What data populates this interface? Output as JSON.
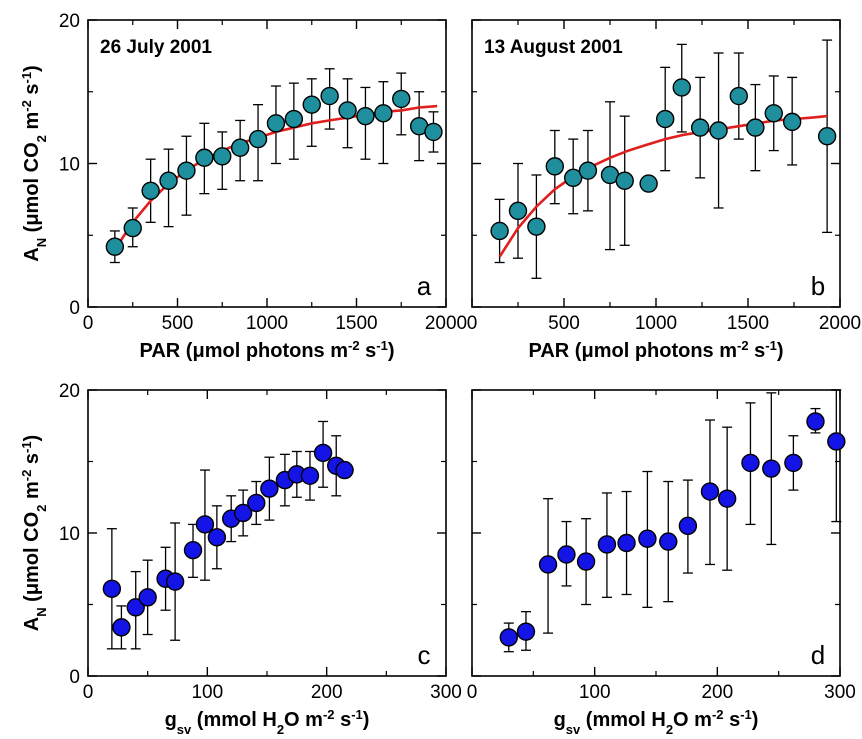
{
  "figure": {
    "colors": {
      "marker_teal": "#1f8f9e",
      "marker_blue": "#1414e6",
      "fit_red": "#e01f1f",
      "axis": "#000000"
    }
  },
  "chart_data": [
    {
      "panel": "a",
      "type": "scatter",
      "annotation": "26 July 2001",
      "panel_letter": "a",
      "xlabel": {
        "main": "PAR (",
        "mu": "μ",
        "rest": "mol photons m",
        "sup1": "-2",
        "mid": " s",
        "sup2": "-1",
        "end": ")"
      },
      "ylabel": {
        "main": "A",
        "sub": "N",
        "rest": " (μmol CO",
        "sub2": "2",
        "mid": " m",
        "sup1": "-2",
        "mid2": " s",
        "sup2": "-1",
        "end": ")"
      },
      "xlim": [
        0,
        2000
      ],
      "ylim": [
        0,
        20
      ],
      "xticks": [
        0,
        500,
        1000,
        1500,
        2000
      ],
      "yticks": [
        0,
        10,
        20
      ],
      "marker_color": "teal",
      "fit_curve": {
        "color": "red",
        "x": [
          150,
          250,
          350,
          450,
          550,
          650,
          750,
          850,
          950,
          1050,
          1150,
          1250,
          1350,
          1450,
          1550,
          1650,
          1750,
          1850,
          1950
        ],
        "y": [
          4.0,
          5.9,
          7.4,
          8.6,
          9.5,
          10.3,
          10.9,
          11.4,
          11.8,
          12.2,
          12.5,
          12.8,
          13.0,
          13.2,
          13.4,
          13.6,
          13.7,
          13.9,
          14.0
        ]
      },
      "points": [
        {
          "x": 150,
          "y": 4.2,
          "err_lo": 3.1,
          "err_hi": 5.3
        },
        {
          "x": 250,
          "y": 5.5,
          "err_lo": 4.2,
          "err_hi": 6.9
        },
        {
          "x": 350,
          "y": 8.1,
          "err_lo": 5.9,
          "err_hi": 10.3
        },
        {
          "x": 450,
          "y": 8.8,
          "err_lo": 5.6,
          "err_hi": 11.0
        },
        {
          "x": 550,
          "y": 9.5,
          "err_lo": 6.4,
          "err_hi": 11.9
        },
        {
          "x": 650,
          "y": 10.4,
          "err_lo": 7.9,
          "err_hi": 12.8
        },
        {
          "x": 750,
          "y": 10.5,
          "err_lo": 8.2,
          "err_hi": 12.2
        },
        {
          "x": 850,
          "y": 11.1,
          "err_lo": 8.8,
          "err_hi": 13.0
        },
        {
          "x": 950,
          "y": 11.7,
          "err_lo": 8.8,
          "err_hi": 14.1
        },
        {
          "x": 1050,
          "y": 12.8,
          "err_lo": 10.0,
          "err_hi": 15.4
        },
        {
          "x": 1150,
          "y": 13.1,
          "err_lo": 10.3,
          "err_hi": 15.6
        },
        {
          "x": 1250,
          "y": 14.1,
          "err_lo": 11.2,
          "err_hi": 15.9
        },
        {
          "x": 1350,
          "y": 14.7,
          "err_lo": 12.4,
          "err_hi": 16.6
        },
        {
          "x": 1450,
          "y": 13.7,
          "err_lo": 11.1,
          "err_hi": 15.9
        },
        {
          "x": 1550,
          "y": 13.3,
          "err_lo": 10.3,
          "err_hi": 15.3
        },
        {
          "x": 1650,
          "y": 13.5,
          "err_lo": 10.0,
          "err_hi": 15.7
        },
        {
          "x": 1750,
          "y": 14.5,
          "err_lo": 12.0,
          "err_hi": 16.3
        },
        {
          "x": 1850,
          "y": 12.6,
          "err_lo": 10.2,
          "err_hi": 15.0
        },
        {
          "x": 1930,
          "y": 12.2,
          "err_lo": 10.8,
          "err_hi": 13.6
        }
      ]
    },
    {
      "panel": "b",
      "type": "scatter",
      "annotation": "13 August 2001",
      "panel_letter": "b",
      "xlabel": {
        "main": "PAR (",
        "mu": "μ",
        "rest": "mol photons m",
        "sup1": "-2",
        "mid": " s",
        "sup2": "-1",
        "end": ")"
      },
      "xlim": [
        0,
        2000
      ],
      "ylim": [
        0,
        20
      ],
      "xticks": [
        0,
        500,
        1000,
        1500,
        2000
      ],
      "yticks": [
        0,
        10,
        20
      ],
      "marker_color": "teal",
      "fit_curve": {
        "color": "red",
        "x": [
          150,
          250,
          350,
          450,
          550,
          650,
          750,
          850,
          950,
          1050,
          1150,
          1250,
          1350,
          1450,
          1550,
          1650,
          1750,
          1850,
          1930
        ],
        "y": [
          3.5,
          5.5,
          7.0,
          8.2,
          9.1,
          9.8,
          10.4,
          10.9,
          11.3,
          11.7,
          12.0,
          12.2,
          12.4,
          12.6,
          12.8,
          13.0,
          13.1,
          13.2,
          13.3
        ]
      },
      "points": [
        {
          "x": 150,
          "y": 5.3,
          "err_lo": 3.1,
          "err_hi": 7.5
        },
        {
          "x": 250,
          "y": 6.7,
          "err_lo": 3.4,
          "err_hi": 10.0
        },
        {
          "x": 350,
          "y": 5.6,
          "err_lo": 2.0,
          "err_hi": 9.2
        },
        {
          "x": 450,
          "y": 9.8,
          "err_lo": 7.2,
          "err_hi": 12.3
        },
        {
          "x": 550,
          "y": 9.0,
          "err_lo": 6.5,
          "err_hi": 11.7
        },
        {
          "x": 630,
          "y": 9.5,
          "err_lo": 6.7,
          "err_hi": 12.3
        },
        {
          "x": 750,
          "y": 9.2,
          "err_lo": 4.0,
          "err_hi": 14.3
        },
        {
          "x": 830,
          "y": 8.8,
          "err_lo": 4.3,
          "err_hi": 13.3
        },
        {
          "x": 960,
          "y": 8.6,
          "err_lo": 8.6,
          "err_hi": 8.6
        },
        {
          "x": 1050,
          "y": 13.1,
          "err_lo": 9.5,
          "err_hi": 16.7
        },
        {
          "x": 1140,
          "y": 15.3,
          "err_lo": 12.2,
          "err_hi": 18.3
        },
        {
          "x": 1240,
          "y": 12.5,
          "err_lo": 9.0,
          "err_hi": 16.0
        },
        {
          "x": 1340,
          "y": 12.3,
          "err_lo": 6.9,
          "err_hi": 17.7
        },
        {
          "x": 1450,
          "y": 14.7,
          "err_lo": 11.7,
          "err_hi": 17.7
        },
        {
          "x": 1540,
          "y": 12.5,
          "err_lo": 9.5,
          "err_hi": 15.5
        },
        {
          "x": 1640,
          "y": 13.5,
          "err_lo": 10.9,
          "err_hi": 16.1
        },
        {
          "x": 1740,
          "y": 12.9,
          "err_lo": 9.9,
          "err_hi": 16.0
        },
        {
          "x": 1930,
          "y": 11.9,
          "err_lo": 5.2,
          "err_hi": 18.6
        }
      ]
    },
    {
      "panel": "c",
      "type": "scatter",
      "panel_letter": "c",
      "xlabel": {
        "main": "g",
        "sub": "sv",
        "rest": " (mmol H",
        "sub2": "2",
        "mid": "O m",
        "sup1": "-2",
        "mid2": " s",
        "sup2": "-1",
        "end": ")"
      },
      "ylabel": {
        "main": "A",
        "sub": "N",
        "rest": " (μmol CO",
        "sub2": "2",
        "mid": " m",
        "sup1": "-2",
        "mid2": " s",
        "sup2": "-1",
        "end": ")"
      },
      "xlim": [
        0,
        300
      ],
      "ylim": [
        0,
        20
      ],
      "xticks": [
        0,
        100,
        200,
        300
      ],
      "yticks": [
        0,
        10,
        20
      ],
      "marker_color": "blue",
      "points": [
        {
          "x": 20,
          "y": 6.1,
          "err_lo": 1.9,
          "err_hi": 10.3
        },
        {
          "x": 28,
          "y": 3.4,
          "err_lo": 1.9,
          "err_hi": 4.9
        },
        {
          "x": 40,
          "y": 4.8,
          "err_lo": 1.9,
          "err_hi": 7.3
        },
        {
          "x": 50,
          "y": 5.5,
          "err_lo": 2.9,
          "err_hi": 8.1
        },
        {
          "x": 65,
          "y": 6.8,
          "err_lo": 4.6,
          "err_hi": 9.0
        },
        {
          "x": 73,
          "y": 6.6,
          "err_lo": 2.5,
          "err_hi": 10.7
        },
        {
          "x": 88,
          "y": 8.8,
          "err_lo": 6.9,
          "err_hi": 10.6
        },
        {
          "x": 98,
          "y": 10.6,
          "err_lo": 6.7,
          "err_hi": 14.4
        },
        {
          "x": 108,
          "y": 9.7,
          "err_lo": 7.5,
          "err_hi": 11.9
        },
        {
          "x": 120,
          "y": 11.0,
          "err_lo": 9.4,
          "err_hi": 12.6
        },
        {
          "x": 130,
          "y": 11.4,
          "err_lo": 9.8,
          "err_hi": 13.0
        },
        {
          "x": 141,
          "y": 12.1,
          "err_lo": 10.6,
          "err_hi": 13.6
        },
        {
          "x": 152,
          "y": 13.1,
          "err_lo": 10.9,
          "err_hi": 15.3
        },
        {
          "x": 165,
          "y": 13.7,
          "err_lo": 11.9,
          "err_hi": 15.5
        },
        {
          "x": 175,
          "y": 14.1,
          "err_lo": 12.5,
          "err_hi": 15.7
        },
        {
          "x": 186,
          "y": 14.0,
          "err_lo": 12.3,
          "err_hi": 15.7
        },
        {
          "x": 197,
          "y": 15.6,
          "err_lo": 13.2,
          "err_hi": 17.8
        },
        {
          "x": 208,
          "y": 14.7,
          "err_lo": 12.6,
          "err_hi": 16.8
        },
        {
          "x": 215,
          "y": 14.4,
          "err_lo": 14.4,
          "err_hi": 14.4
        }
      ]
    },
    {
      "panel": "d",
      "type": "scatter",
      "panel_letter": "d",
      "xlabel": {
        "main": "g",
        "sub": "sv",
        "rest": " (mmol H",
        "sub2": "2",
        "mid": "O m",
        "sup1": "-2",
        "mid2": " s",
        "sup2": "-1",
        "end": ")"
      },
      "xlim": [
        0,
        300
      ],
      "ylim": [
        0,
        20
      ],
      "xticks": [
        0,
        100,
        200,
        300
      ],
      "yticks": [
        0,
        10,
        20
      ],
      "marker_color": "blue",
      "points": [
        {
          "x": 30,
          "y": 2.7,
          "err_lo": 1.7,
          "err_hi": 3.7
        },
        {
          "x": 44,
          "y": 3.1,
          "err_lo": 1.8,
          "err_hi": 4.5
        },
        {
          "x": 62,
          "y": 7.8,
          "err_lo": 3.0,
          "err_hi": 12.4
        },
        {
          "x": 77,
          "y": 8.5,
          "err_lo": 6.3,
          "err_hi": 10.8
        },
        {
          "x": 93,
          "y": 8.0,
          "err_lo": 5.0,
          "err_hi": 11.0
        },
        {
          "x": 110,
          "y": 9.2,
          "err_lo": 5.5,
          "err_hi": 12.8
        },
        {
          "x": 126,
          "y": 9.3,
          "err_lo": 5.7,
          "err_hi": 12.9
        },
        {
          "x": 143,
          "y": 9.6,
          "err_lo": 4.8,
          "err_hi": 14.3
        },
        {
          "x": 160,
          "y": 9.4,
          "err_lo": 5.2,
          "err_hi": 13.6
        },
        {
          "x": 176,
          "y": 10.5,
          "err_lo": 7.2,
          "err_hi": 13.7
        },
        {
          "x": 194,
          "y": 12.9,
          "err_lo": 7.8,
          "err_hi": 17.9
        },
        {
          "x": 208,
          "y": 12.4,
          "err_lo": 7.4,
          "err_hi": 17.4
        },
        {
          "x": 227,
          "y": 14.9,
          "err_lo": 10.6,
          "err_hi": 19.1
        },
        {
          "x": 244,
          "y": 14.5,
          "err_lo": 9.2,
          "err_hi": 19.8
        },
        {
          "x": 262,
          "y": 14.9,
          "err_lo": 13.0,
          "err_hi": 16.8
        },
        {
          "x": 280,
          "y": 17.8,
          "err_lo": 17.0,
          "err_hi": 18.7
        },
        {
          "x": 297,
          "y": 16.4,
          "err_lo": 10.8,
          "err_hi": 20.0
        }
      ]
    }
  ]
}
